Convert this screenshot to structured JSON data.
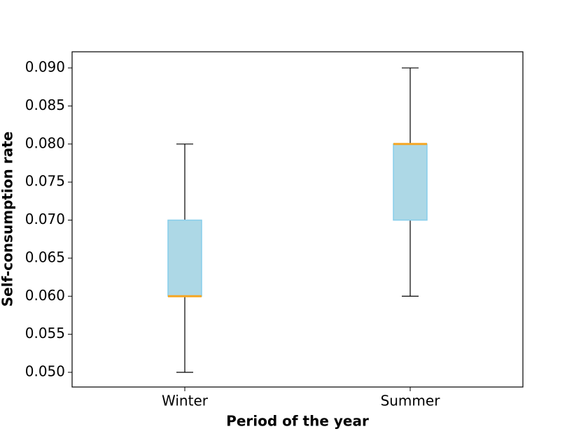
{
  "chart_data": {
    "type": "box",
    "xlabel": "Period of the year",
    "ylabel": "Self-consumption rate",
    "categories": [
      "Winter",
      "Summer"
    ],
    "boxes": [
      {
        "whislo": 0.05,
        "q1": 0.06,
        "med": 0.06,
        "q3": 0.07,
        "whishi": 0.08
      },
      {
        "whislo": 0.06,
        "q1": 0.07,
        "med": 0.08,
        "q3": 0.08,
        "whishi": 0.09
      }
    ],
    "box_color": "#add8e6",
    "box_edge_color": "#87ceeb",
    "median_color": "#f5a623",
    "whisker_color": "#666666",
    "ylim": [
      0.04807,
      0.09212
    ],
    "yticks": [
      {
        "value": 0.05,
        "label": "0.050"
      },
      {
        "value": 0.055,
        "label": "0.055"
      },
      {
        "value": 0.06,
        "label": "0.060"
      },
      {
        "value": 0.065,
        "label": "0.065"
      },
      {
        "value": 0.07,
        "label": "0.070"
      },
      {
        "value": 0.075,
        "label": "0.075"
      },
      {
        "value": 0.08,
        "label": "0.080"
      },
      {
        "value": 0.085,
        "label": "0.085"
      },
      {
        "value": 0.09,
        "label": "0.090"
      }
    ]
  }
}
